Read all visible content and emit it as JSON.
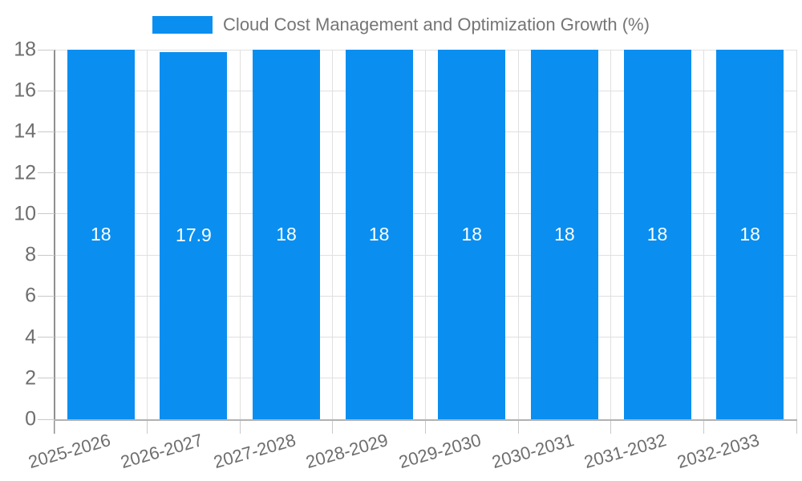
{
  "legend": {
    "series_label": "Cloud Cost Management and Optimization Growth (%)",
    "swatch_color": "#0a8ff0"
  },
  "chart_data": {
    "type": "bar",
    "title": "Cloud Cost Management and Optimization Growth (%)",
    "categories": [
      "2025-2026",
      "2026-2027",
      "2027-2028",
      "2028-2029",
      "2029-2030",
      "2030-2031",
      "2031-2032",
      "2032-2033"
    ],
    "series": [
      {
        "name": "Cloud Cost Management and Optimization Growth (%)",
        "values": [
          18,
          17.9,
          18,
          18,
          18,
          18,
          18,
          18
        ],
        "value_labels": [
          "18",
          "17.9",
          "18",
          "18",
          "18",
          "18",
          "18",
          "18"
        ]
      }
    ],
    "xlabel": "",
    "ylabel": "",
    "ylim": [
      0,
      18
    ],
    "yticks": [
      0,
      2,
      4,
      6,
      8,
      10,
      12,
      14,
      16,
      18
    ],
    "grid": true,
    "legend_position": "top",
    "bar_color": "#0a8ff0",
    "value_label_color": "#ffffff"
  },
  "colors": {
    "bar": "#0a8ff0",
    "gridline": "#e0e0e0",
    "baseline": "#b2b2b2",
    "axis_line": "#8f8f8f",
    "tick": "#c9c9c9",
    "axis_text": "#6e6e6e",
    "legend_text": "#757575",
    "background": "#ffffff"
  }
}
